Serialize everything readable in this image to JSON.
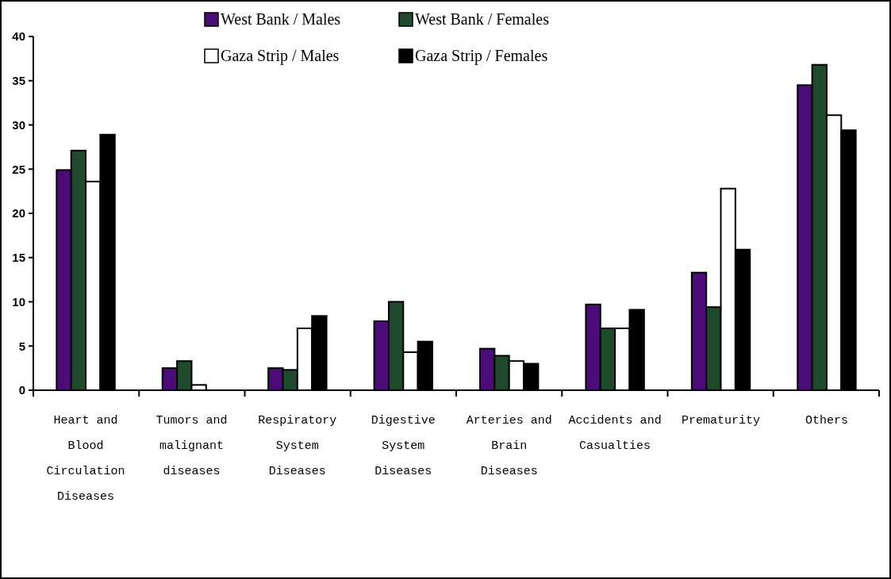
{
  "chart_data": {
    "type": "bar",
    "categories": [
      "Heart and Blood Circulation Diseases",
      "Tumors and malignant diseases",
      "Respiratory System Diseases",
      "Digestive System Diseases",
      "Arteries and Brain Diseases",
      "Accidents and Casualties",
      "Prematurity",
      "Others"
    ],
    "series": [
      {
        "name": "West Bank / Males",
        "color": "#4b0c78",
        "values": [
          24.9,
          2.5,
          2.5,
          7.8,
          4.7,
          9.7,
          13.3,
          34.5
        ]
      },
      {
        "name": "West Bank / Females",
        "color": "#1f4a2c",
        "values": [
          27.1,
          3.3,
          2.3,
          10.0,
          3.9,
          7.0,
          9.4,
          36.8
        ]
      },
      {
        "name": "Gaza Strip / Males",
        "color": "#ffffff",
        "values": [
          23.6,
          0.6,
          7.0,
          4.3,
          3.3,
          7.0,
          22.8,
          31.1
        ]
      },
      {
        "name": "Gaza Strip / Females",
        "color": "#000000",
        "values": [
          28.9,
          0,
          8.4,
          5.5,
          3.0,
          9.1,
          15.9,
          29.4
        ]
      }
    ],
    "ylim": [
      0,
      40
    ],
    "yticks": [
      0,
      5,
      10,
      15,
      20,
      25,
      30,
      35,
      40
    ],
    "grid": false,
    "legend": "top"
  }
}
